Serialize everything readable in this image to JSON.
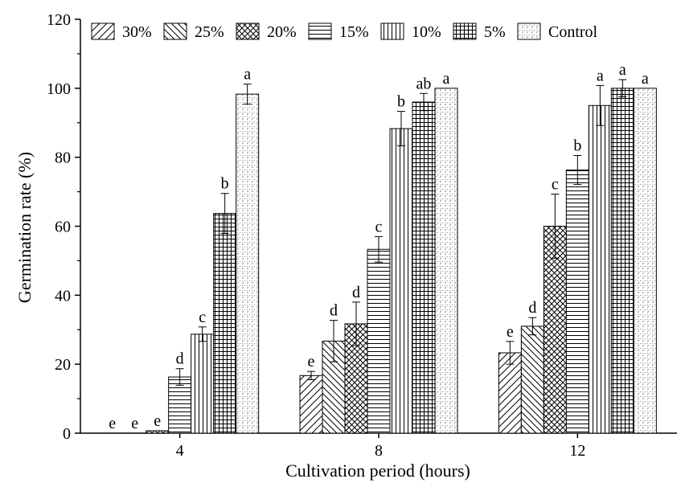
{
  "chart_data": {
    "type": "bar",
    "xlabel": "Cultivation period (hours)",
    "ylabel": "Germination rate (%)",
    "ylim": [
      0,
      120
    ],
    "yticks": [
      "0",
      "20",
      "40",
      "60",
      "80",
      "100",
      "120"
    ],
    "categories": [
      "4",
      "8",
      "12"
    ],
    "legend_position": "top",
    "grid": false,
    "series": [
      {
        "name": "30%",
        "pattern": "diag-right",
        "values": [
          0,
          16.7,
          23.3
        ],
        "errors": [
          0,
          1.2,
          3.3
        ],
        "labels": [
          "e",
          "e",
          "e"
        ]
      },
      {
        "name": "25%",
        "pattern": "diag-left",
        "values": [
          0,
          26.7,
          31.0
        ],
        "errors": [
          0,
          6.0,
          2.5
        ],
        "labels": [
          "e",
          "d",
          "d"
        ]
      },
      {
        "name": "20%",
        "pattern": "crosshatch",
        "values": [
          0.7,
          31.7,
          60.0
        ],
        "errors": [
          0,
          6.3,
          9.3
        ],
        "labels": [
          "e",
          "d",
          "c"
        ]
      },
      {
        "name": "15%",
        "pattern": "horizontal",
        "values": [
          16.3,
          53.3,
          76.3
        ],
        "errors": [
          2.4,
          3.7,
          4.2
        ],
        "labels": [
          "d",
          "c",
          "b"
        ]
      },
      {
        "name": "10%",
        "pattern": "vertical",
        "values": [
          28.7,
          88.3,
          95.0
        ],
        "errors": [
          2.1,
          5.0,
          5.8
        ],
        "labels": [
          "c",
          "b",
          "a"
        ]
      },
      {
        "name": "5%",
        "pattern": "grid",
        "values": [
          63.7,
          96.0,
          100.0
        ],
        "errors": [
          5.8,
          2.5,
          2.5
        ],
        "labels": [
          "b",
          "ab",
          "a"
        ]
      },
      {
        "name": "Control",
        "pattern": "dots",
        "values": [
          98.3,
          100.0,
          100.0
        ],
        "errors": [
          2.9,
          0,
          0
        ],
        "labels": [
          "a",
          "a",
          "a"
        ]
      }
    ]
  }
}
